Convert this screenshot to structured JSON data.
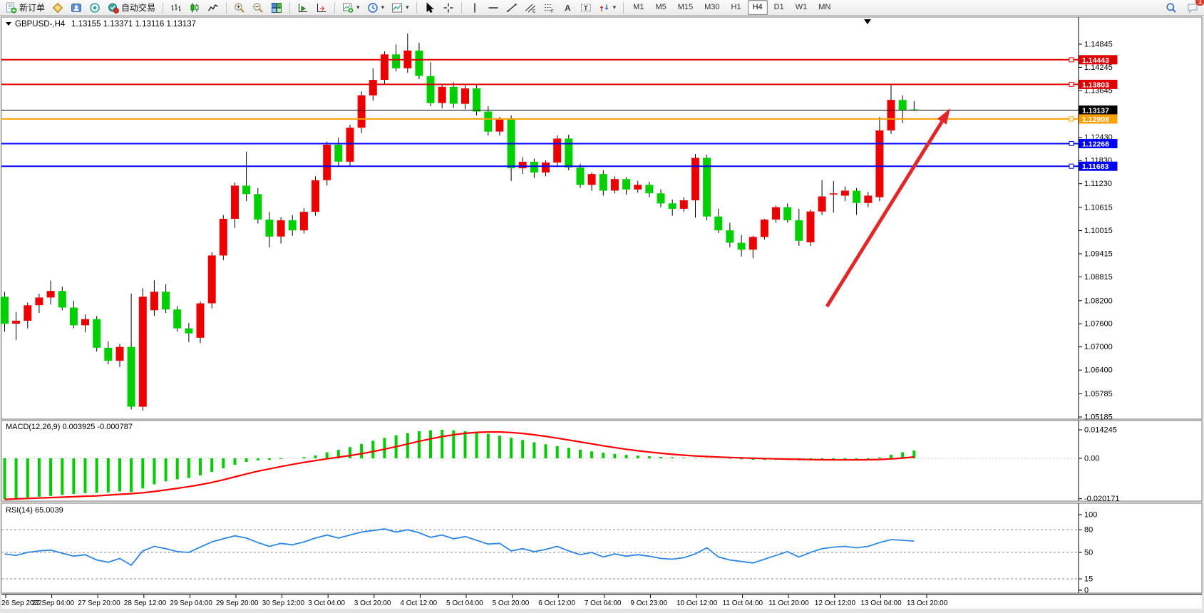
{
  "toolbar": {
    "new_order_label": "新订单",
    "autotrading_label": "自动交易",
    "items": [
      {
        "type": "button",
        "name": "new-order-button",
        "icon": "new-order-icon",
        "label": "新订单"
      },
      {
        "type": "button",
        "name": "market-button",
        "icon": "market-icon"
      },
      {
        "type": "button",
        "name": "community-button",
        "icon": "community-icon"
      },
      {
        "type": "button",
        "name": "signals-button",
        "icon": "signals-icon"
      },
      {
        "type": "button",
        "name": "autotrading-button",
        "icon": "autotrading-icon",
        "label": "自动交易"
      },
      {
        "type": "sep"
      },
      {
        "type": "button",
        "name": "bar-chart-button",
        "icon": "bar-chart-icon"
      },
      {
        "type": "button",
        "name": "candle-chart-button",
        "icon": "candle-chart-icon"
      },
      {
        "type": "button",
        "name": "line-chart-button",
        "icon": "line-chart-icon"
      },
      {
        "type": "sep"
      },
      {
        "type": "button",
        "name": "zoom-in-button",
        "icon": "zoom-in-icon"
      },
      {
        "type": "button",
        "name": "zoom-out-button",
        "icon": "zoom-out-icon"
      },
      {
        "type": "button",
        "name": "tile-windows-button",
        "icon": "tile-windows-icon"
      },
      {
        "type": "sep"
      },
      {
        "type": "button",
        "name": "auto-scroll-button",
        "icon": "auto-scroll-icon"
      },
      {
        "type": "button",
        "name": "chart-shift-button",
        "icon": "chart-shift-icon"
      },
      {
        "type": "sep"
      },
      {
        "type": "button",
        "name": "new-chart-button",
        "icon": "new-chart-icon",
        "caret": true
      },
      {
        "type": "button",
        "name": "periods-button",
        "icon": "clock-icon",
        "caret": true
      },
      {
        "type": "button",
        "name": "templates-button",
        "icon": "template-icon",
        "caret": true
      },
      {
        "type": "sep"
      },
      {
        "type": "button",
        "name": "cursor-button",
        "icon": "cursor-icon"
      },
      {
        "type": "button",
        "name": "crosshair-button",
        "icon": "crosshair-icon"
      },
      {
        "type": "sep"
      },
      {
        "type": "button",
        "name": "vline-button",
        "icon": "vline-icon"
      },
      {
        "type": "button",
        "name": "hline-button",
        "icon": "hline-icon"
      },
      {
        "type": "button",
        "name": "trendline-button",
        "icon": "trendline-icon"
      },
      {
        "type": "button",
        "name": "channel-button",
        "icon": "channel-icon"
      },
      {
        "type": "button",
        "name": "fibonacci-button",
        "icon": "fibonacci-icon"
      },
      {
        "type": "button",
        "name": "text-button",
        "icon": "text-icon"
      },
      {
        "type": "button",
        "name": "text-label-button",
        "icon": "text-label-icon"
      },
      {
        "type": "button",
        "name": "arrows-button",
        "icon": "arrows-icon",
        "caret": true
      },
      {
        "type": "sep"
      },
      {
        "type": "timeframes"
      }
    ],
    "timeframes": [
      "M1",
      "M5",
      "M15",
      "M30",
      "H1",
      "H4",
      "D1",
      "W1",
      "MN"
    ],
    "active_timeframe": "H4",
    "chat_badge": "1"
  },
  "chart": {
    "symbol_title": "GBPUSD-,H4",
    "ohlc_text": "1.13155 1.13371 1.13116 1.13137",
    "price_axis_ticks": [
      "1.14845",
      "1.14245",
      "1.13645",
      "1.12430",
      "1.11830",
      "1.11230",
      "1.10615",
      "1.10015",
      "1.09415",
      "1.08815",
      "1.08200",
      "1.07600",
      "1.07000",
      "1.06400",
      "1.05785",
      "1.05185"
    ],
    "hlines": [
      {
        "label": "1.14443",
        "price": 1.14443,
        "color": "#e00000",
        "kind": "resistance-line"
      },
      {
        "label": "1.13803",
        "price": 1.13803,
        "color": "#e00000",
        "kind": "resistance-line"
      },
      {
        "label": "1.13137",
        "price": 1.13137,
        "color": "#000000",
        "kind": "current-price-line"
      },
      {
        "label": "1.12908",
        "price": 1.12908,
        "color": "#ffa000",
        "kind": "pivot-line"
      },
      {
        "label": "1.12268",
        "price": 1.12268,
        "color": "#0000ff",
        "kind": "support-line"
      },
      {
        "label": "1.11683",
        "price": 1.11683,
        "color": "#0000ff",
        "kind": "support-line"
      }
    ],
    "macd_label": "MACD(12,26,9)",
    "macd_values_text": "0.003925 -0.000787",
    "macd_axis_ticks": [
      {
        "label": "0.014245",
        "value": 0.014245
      },
      {
        "label": "0.00",
        "value": 0.0
      },
      {
        "label": "-0.020171",
        "value": -0.020171
      }
    ],
    "rsi_label": "RSI(14)",
    "rsi_value_text": "65.0039",
    "rsi_axis_ticks": [
      {
        "label": "100",
        "value": 100
      },
      {
        "label": "80",
        "value": 80
      },
      {
        "label": "50",
        "value": 50
      },
      {
        "label": "15",
        "value": 15
      },
      {
        "label": "0",
        "value": 0
      }
    ],
    "rsi_dashed_levels": [
      80,
      50,
      15
    ],
    "time_labels": [
      "26 Sep 2022",
      "27 Sep 04:00",
      "27 Sep 20:00",
      "28 Sep 12:00",
      "29 Sep 04:00",
      "29 Sep 20:00",
      "30 Sep 12:00",
      "3 Oct 04:00",
      "3 Oct 20:00",
      "4 Oct 12:00",
      "5 Oct 04:00",
      "5 Oct 20:00",
      "6 Oct 12:00",
      "7 Oct 04:00",
      "9 Oct 23:00",
      "10 Oct 12:00",
      "11 Oct 04:00",
      "11 Oct 20:00",
      "12 Oct 12:00",
      "13 Oct 04:00",
      "13 Oct 20:00"
    ],
    "colors": {
      "bull": "#ee0000",
      "bear": "#00d000",
      "macd_hist": "#00cc00",
      "macd_signal": "#ff0000",
      "rsi_line": "#2e86e0",
      "arrow": "#e02828"
    }
  },
  "chart_data": {
    "type": "candlestick",
    "symbol": "GBPUSD-",
    "period": "H4",
    "price_range": [
      1.05185,
      1.14845
    ],
    "note": "red body = bullish, green body = bearish",
    "candles_ohlc": [
      [
        1.083,
        1.0843,
        1.074,
        1.076
      ],
      [
        1.076,
        1.079,
        1.0718,
        1.0768
      ],
      [
        1.0768,
        1.0815,
        1.0748,
        1.0808
      ],
      [
        1.0808,
        1.0838,
        1.0788,
        1.0828
      ],
      [
        1.0828,
        1.0872,
        1.081,
        1.0845
      ],
      [
        1.0845,
        1.0856,
        1.0795,
        1.0802
      ],
      [
        1.0802,
        1.082,
        1.0748,
        1.0756
      ],
      [
        1.0756,
        1.0784,
        1.0738,
        1.0772
      ],
      [
        1.0772,
        1.078,
        1.0688,
        1.0698
      ],
      [
        1.0698,
        1.0714,
        1.0655,
        1.0664
      ],
      [
        1.0664,
        1.0708,
        1.0648,
        1.07
      ],
      [
        1.07,
        1.0838,
        1.0538,
        1.0545
      ],
      [
        1.0545,
        1.0852,
        1.0535,
        1.083
      ],
      [
        1.0795,
        1.0873,
        1.078,
        1.0843
      ],
      [
        1.0843,
        1.0862,
        1.0788,
        1.0797
      ],
      [
        1.0797,
        1.0806,
        1.074,
        1.0748
      ],
      [
        1.0748,
        1.0762,
        1.0712,
        1.0735
      ],
      [
        1.0724,
        1.0818,
        1.071,
        1.0813
      ],
      [
        1.0813,
        1.0945,
        1.08,
        1.0937
      ],
      [
        1.0937,
        1.1042,
        1.0925,
        1.1032
      ],
      [
        1.1032,
        1.1126,
        1.1008,
        1.1118
      ],
      [
        1.1118,
        1.1206,
        1.1078,
        1.1096
      ],
      [
        1.1096,
        1.1112,
        1.102,
        1.103
      ],
      [
        1.103,
        1.105,
        1.0958,
        1.0986
      ],
      [
        1.0986,
        1.1036,
        1.0968,
        1.1028
      ],
      [
        1.1028,
        1.1042,
        1.0988,
        1.1002
      ],
      [
        1.1002,
        1.106,
        1.0994,
        1.105
      ],
      [
        1.105,
        1.1142,
        1.104,
        1.1132
      ],
      [
        1.1132,
        1.1232,
        1.1118,
        1.1224
      ],
      [
        1.1224,
        1.1242,
        1.1168,
        1.118
      ],
      [
        1.118,
        1.1276,
        1.117,
        1.1268
      ],
      [
        1.1268,
        1.1362,
        1.1254,
        1.1352
      ],
      [
        1.1352,
        1.1422,
        1.1338,
        1.1392
      ],
      [
        1.1392,
        1.1466,
        1.138,
        1.1458
      ],
      [
        1.1458,
        1.1484,
        1.1414,
        1.1422
      ],
      [
        1.1422,
        1.1512,
        1.141,
        1.1468
      ],
      [
        1.1468,
        1.1488,
        1.1394,
        1.1402
      ],
      [
        1.1402,
        1.1438,
        1.1324,
        1.1332
      ],
      [
        1.1332,
        1.1382,
        1.1318,
        1.1374
      ],
      [
        1.1374,
        1.1386,
        1.132,
        1.133
      ],
      [
        1.133,
        1.1382,
        1.1316,
        1.137
      ],
      [
        1.137,
        1.138,
        1.13,
        1.131
      ],
      [
        1.131,
        1.1324,
        1.1248,
        1.1258
      ],
      [
        1.1258,
        1.1296,
        1.1248,
        1.129
      ],
      [
        1.129,
        1.13,
        1.113,
        1.1163
      ],
      [
        1.1163,
        1.1192,
        1.1148,
        1.118
      ],
      [
        1.118,
        1.1188,
        1.1138,
        1.1152
      ],
      [
        1.1152,
        1.1184,
        1.1142,
        1.1178
      ],
      [
        1.1178,
        1.1248,
        1.1166,
        1.124
      ],
      [
        1.124,
        1.125,
        1.1158,
        1.1165
      ],
      [
        1.1165,
        1.1175,
        1.1112,
        1.112
      ],
      [
        1.112,
        1.1152,
        1.1105,
        1.1148
      ],
      [
        1.1148,
        1.1158,
        1.1092,
        1.1105
      ],
      [
        1.1105,
        1.1142,
        1.1098,
        1.1135
      ],
      [
        1.1135,
        1.114,
        1.1095,
        1.1108
      ],
      [
        1.1108,
        1.113,
        1.11,
        1.112
      ],
      [
        1.112,
        1.1128,
        1.1088,
        1.1098
      ],
      [
        1.1098,
        1.1108,
        1.1062,
        1.1072
      ],
      [
        1.1072,
        1.1082,
        1.104,
        1.1058
      ],
      [
        1.1058,
        1.1088,
        1.105,
        1.108
      ],
      [
        1.108,
        1.12,
        1.1035,
        1.119
      ],
      [
        1.119,
        1.1198,
        1.1028,
        1.1038
      ],
      [
        1.1038,
        1.1058,
        1.0995,
        1.1002
      ],
      [
        1.1002,
        1.1022,
        1.0958,
        1.097
      ],
      [
        1.097,
        1.099,
        1.0934,
        1.0952
      ],
      [
        1.0952,
        1.0988,
        1.093,
        1.0985
      ],
      [
        1.0985,
        1.1032,
        1.0978,
        1.103
      ],
      [
        1.103,
        1.1066,
        1.1022,
        1.1062
      ],
      [
        1.1062,
        1.1072,
        1.1022,
        1.1028
      ],
      [
        1.1028,
        1.1058,
        1.0962,
        1.0975
      ],
      [
        1.0971,
        1.1056,
        1.0962,
        1.1051
      ],
      [
        1.1051,
        1.1132,
        1.1042,
        1.109
      ],
      [
        1.1095,
        1.113,
        1.1048,
        1.1098
      ],
      [
        1.1092,
        1.1116,
        1.1078,
        1.1105
      ],
      [
        1.1105,
        1.1112,
        1.1042,
        1.1073
      ],
      [
        1.1073,
        1.1102,
        1.1062,
        1.1092
      ],
      [
        1.1088,
        1.1296,
        1.1078,
        1.1261
      ],
      [
        1.1261,
        1.1381,
        1.1252,
        1.134
      ],
      [
        1.134,
        1.1352,
        1.128,
        1.1313
      ],
      [
        1.13155,
        1.13371,
        1.13116,
        1.13137
      ]
    ],
    "macd_main": [
      -0.0205,
      -0.02,
      -0.0196,
      -0.0192,
      -0.0188,
      -0.0183,
      -0.0178,
      -0.0174,
      -0.0172,
      -0.017,
      -0.0165,
      -0.0168,
      -0.015,
      -0.013,
      -0.0115,
      -0.0105,
      -0.0098,
      -0.0085,
      -0.0068,
      -0.005,
      -0.0032,
      -0.0018,
      -0.001,
      -0.0008,
      -0.0004,
      0.0,
      0.0006,
      0.0014,
      0.003,
      0.0042,
      0.0056,
      0.0072,
      0.0088,
      0.0102,
      0.0115,
      0.0126,
      0.0135,
      0.014,
      0.0142,
      0.014,
      0.0136,
      0.013,
      0.0122,
      0.0113,
      0.0103,
      0.0092,
      0.008,
      0.007,
      0.0061,
      0.0052,
      0.0043,
      0.0035,
      0.0028,
      0.0022,
      0.0017,
      0.0013,
      0.001,
      0.0007,
      0.0005,
      0.0003,
      0.0002,
      0.0001,
      0.0,
      -0.0002,
      -0.0005,
      -0.0007,
      -0.0008,
      -0.0008,
      -0.0007,
      -0.001,
      -0.001,
      -0.0008,
      -0.0006,
      -0.0005,
      -0.0006,
      -0.0005,
      0.0005,
      0.0018,
      0.003,
      0.003925
    ],
    "rsi": [
      48,
      46,
      50,
      52,
      53,
      49,
      45,
      47,
      40,
      37,
      42,
      33,
      52,
      58,
      55,
      51,
      50,
      57,
      64,
      68,
      72,
      69,
      63,
      58,
      62,
      60,
      64,
      69,
      73,
      69,
      73,
      77,
      79,
      81,
      77,
      80,
      76,
      70,
      73,
      68,
      71,
      66,
      61,
      62,
      52,
      55,
      51,
      54,
      58,
      52,
      47,
      50,
      44,
      48,
      45,
      47,
      45,
      42,
      41,
      43,
      48,
      56,
      44,
      40,
      38,
      36,
      41,
      46,
      51,
      44,
      50,
      55,
      57,
      58,
      56,
      58,
      63,
      67,
      66,
      65
    ]
  }
}
